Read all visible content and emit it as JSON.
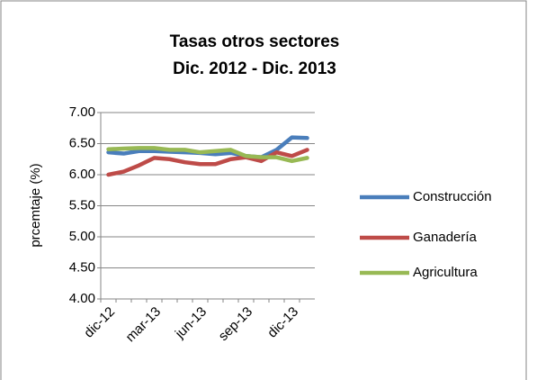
{
  "chart_data": {
    "type": "line",
    "title": "Tasas otros sectores",
    "subtitle": "Dic. 2012 - Dic. 2013",
    "y_label": "prcemtaje (%)",
    "categories": [
      "dic-12",
      null,
      null,
      "mar-13",
      null,
      null,
      "jun-13",
      null,
      null,
      "sep-13",
      null,
      null,
      "dic-13",
      null
    ],
    "series": [
      {
        "name": "Construcción",
        "color": "#4a7ebb",
        "values": [
          6.36,
          6.34,
          6.38,
          6.38,
          6.37,
          6.36,
          6.35,
          6.33,
          6.35,
          6.3,
          6.28,
          6.4,
          6.6,
          6.59
        ]
      },
      {
        "name": "Ganadería",
        "color": "#be4b48",
        "values": [
          6.0,
          6.05,
          6.15,
          6.27,
          6.25,
          6.2,
          6.17,
          6.17,
          6.25,
          6.28,
          6.22,
          6.36,
          6.3,
          6.4
        ]
      },
      {
        "name": "Agricultura",
        "color": "#98b954",
        "values": [
          6.41,
          6.42,
          6.43,
          6.43,
          6.4,
          6.4,
          6.36,
          6.38,
          6.4,
          6.3,
          6.28,
          6.28,
          6.22,
          6.27
        ]
      }
    ],
    "ylim": [
      4,
      7
    ],
    "yticks": [
      {
        "value": 4,
        "label": "4.00"
      },
      {
        "value": 4.5,
        "label": "4.50"
      },
      {
        "value": 5,
        "label": "5.00"
      },
      {
        "value": 5.5,
        "label": "5.50"
      },
      {
        "value": 6,
        "label": "6.00"
      },
      {
        "value": 6.5,
        "label": "6.50"
      },
      {
        "value": 7,
        "label": "7.00"
      }
    ],
    "grid": true,
    "legend": "right"
  }
}
